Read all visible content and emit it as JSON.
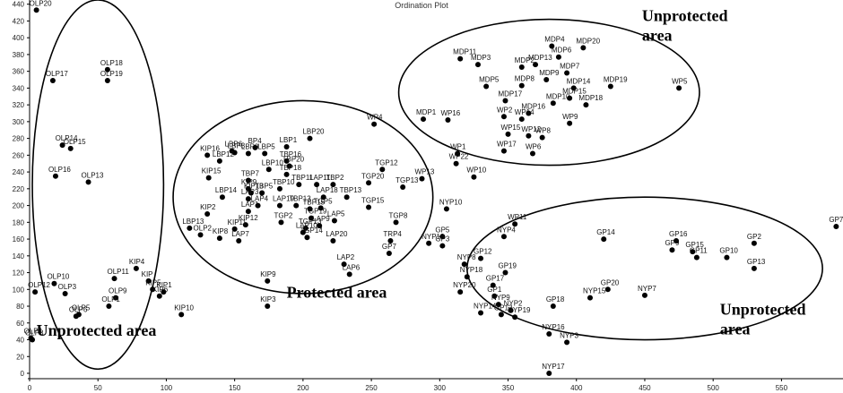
{
  "chart_data": {
    "type": "scatter",
    "title": "Ordination Plot",
    "xlabel": "",
    "ylabel": "",
    "xlim": [
      0,
      595
    ],
    "ylim": [
      0,
      445
    ],
    "x_ticks": [
      0,
      50,
      100,
      150,
      200,
      250,
      300,
      350,
      400,
      450,
      500,
      550
    ],
    "y_ticks": [
      0,
      20,
      40,
      60,
      80,
      100,
      120,
      140,
      160,
      180,
      200,
      220,
      240,
      260,
      280,
      300,
      320,
      340,
      360,
      380,
      400,
      420,
      440
    ],
    "grid": false,
    "legend": "none",
    "marker_color": "#000000",
    "ellipses": [
      {
        "label": "Unprotected area",
        "cx": 50,
        "cy": 225,
        "rx": 48,
        "ry": 220,
        "label_x": 5,
        "label_y": 45
      },
      {
        "label": "Protected area",
        "cx": 200,
        "cy": 210,
        "rx": 95,
        "ry": 115,
        "label_x": 188,
        "label_y": 90
      },
      {
        "label": "Unprotected area",
        "cx": 380,
        "cy": 335,
        "rx": 110,
        "ry": 87,
        "label_x": 448,
        "label_y": 420
      },
      {
        "label": "Unprotected area",
        "cx": 450,
        "cy": 125,
        "rx": 130,
        "ry": 85,
        "label_x": 505,
        "label_y": 70
      }
    ],
    "points": [
      {
        "label": "OLP20",
        "x": 5,
        "y": 433
      },
      {
        "label": "OLP17",
        "x": 17,
        "y": 349
      },
      {
        "label": "OLP18",
        "x": 57,
        "y": 362
      },
      {
        "label": "OLP19",
        "x": 57,
        "y": 349
      },
      {
        "label": "OLP14",
        "x": 24,
        "y": 272
      },
      {
        "label": "OLP15",
        "x": 30,
        "y": 268
      },
      {
        "label": "OLP16",
        "x": 19,
        "y": 235
      },
      {
        "label": "OLP13",
        "x": 43,
        "y": 228
      },
      {
        "label": "OLP12",
        "x": 4,
        "y": 97
      },
      {
        "label": "OLP10",
        "x": 18,
        "y": 107
      },
      {
        "label": "OLP11",
        "x": 62,
        "y": 113
      },
      {
        "label": "OLP3",
        "x": 26,
        "y": 95
      },
      {
        "label": "OLP9",
        "x": 63,
        "y": 90
      },
      {
        "label": "OLP1",
        "x": 58,
        "y": 80
      },
      {
        "label": "OLP5",
        "x": 36,
        "y": 70
      },
      {
        "label": "OLP6",
        "x": 34,
        "y": 68
      },
      {
        "label": "OLP4",
        "x": 1,
        "y": 42
      },
      {
        "label": "OLP8",
        "x": 2,
        "y": 40
      },
      {
        "label": "KIP4",
        "x": 78,
        "y": 125
      },
      {
        "label": "KIP",
        "x": 87,
        "y": 110
      },
      {
        "label": "KIP5",
        "x": 90,
        "y": 100
      },
      {
        "label": "KIP1",
        "x": 98,
        "y": 97
      },
      {
        "label": "KIP6",
        "x": 95,
        "y": 92
      },
      {
        "label": "KIP10",
        "x": 111,
        "y": 70
      },
      {
        "label": "KIP16",
        "x": 130,
        "y": 260
      },
      {
        "label": "LBP12",
        "x": 139,
        "y": 253
      },
      {
        "label": "KIP15",
        "x": 131,
        "y": 233
      },
      {
        "label": "LBP14",
        "x": 141,
        "y": 210
      },
      {
        "label": "KIP2",
        "x": 130,
        "y": 190
      },
      {
        "label": "LBP13",
        "x": 117,
        "y": 173
      },
      {
        "label": "OLP2",
        "x": 125,
        "y": 165
      },
      {
        "label": "KIP8",
        "x": 139,
        "y": 161
      },
      {
        "label": "LAP7",
        "x": 153,
        "y": 158
      },
      {
        "label": "KIP11",
        "x": 150,
        "y": 172
      },
      {
        "label": "KIP12",
        "x": 158,
        "y": 177
      },
      {
        "label": "LAP1",
        "x": 160,
        "y": 193
      },
      {
        "label": "LAP4",
        "x": 167,
        "y": 200
      },
      {
        "label": "TBP5",
        "x": 170,
        "y": 215
      },
      {
        "label": "LAP3",
        "x": 160,
        "y": 208
      },
      {
        "label": "LBP6",
        "x": 148,
        "y": 265
      },
      {
        "label": "LBP9",
        "x": 160,
        "y": 262
      },
      {
        "label": "LBP5",
        "x": 172,
        "y": 262
      },
      {
        "label": "BP4",
        "x": 165,
        "y": 269
      },
      {
        "label": "LBP1",
        "x": 188,
        "y": 270
      },
      {
        "label": "LBP20",
        "x": 205,
        "y": 280
      },
      {
        "label": "TBP16",
        "x": 188,
        "y": 253
      },
      {
        "label": "TBP20",
        "x": 190,
        "y": 247
      },
      {
        "label": "TBP18",
        "x": 188,
        "y": 237
      },
      {
        "label": "TBP7",
        "x": 160,
        "y": 230
      },
      {
        "label": "KIP9",
        "x": 160,
        "y": 220
      },
      {
        "label": "KIP13",
        "x": 162,
        "y": 215
      },
      {
        "label": "TBP10",
        "x": 183,
        "y": 220
      },
      {
        "label": "TBP11",
        "x": 197,
        "y": 225
      },
      {
        "label": "LAP11",
        "x": 210,
        "y": 225
      },
      {
        "label": "TBP2",
        "x": 222,
        "y": 225
      },
      {
        "label": "LAP18",
        "x": 215,
        "y": 210
      },
      {
        "label": "TBP13",
        "x": 232,
        "y": 210
      },
      {
        "label": "TGP5",
        "x": 213,
        "y": 197
      },
      {
        "label": "LAP19",
        "x": 183,
        "y": 200
      },
      {
        "label": "TGP19",
        "x": 206,
        "y": 185
      },
      {
        "label": "TGP2",
        "x": 184,
        "y": 180
      },
      {
        "label": "TGP13",
        "x": 202,
        "y": 173
      },
      {
        "label": "TGP14",
        "x": 203,
        "y": 162
      },
      {
        "label": "LAP5",
        "x": 223,
        "y": 182
      },
      {
        "label": "LAP20",
        "x": 222,
        "y": 158
      },
      {
        "label": "LAP2",
        "x": 230,
        "y": 130
      },
      {
        "label": "LAP6",
        "x": 234,
        "y": 118
      },
      {
        "label": "TGP20",
        "x": 248,
        "y": 227
      },
      {
        "label": "TGP12",
        "x": 258,
        "y": 243
      },
      {
        "label": "TGP15",
        "x": 248,
        "y": 198
      },
      {
        "label": "TGP13",
        "x": 273,
        "y": 222
      },
      {
        "label": "TGP8",
        "x": 268,
        "y": 180
      },
      {
        "label": "TRP4",
        "x": 264,
        "y": 158
      },
      {
        "label": "GP5",
        "x": 302,
        "y": 163
      },
      {
        "label": "GP3",
        "x": 302,
        "y": 152
      },
      {
        "label": "NYP13",
        "x": 292,
        "y": 155
      },
      {
        "label": "GP7",
        "x": 263,
        "y": 143
      },
      {
        "label": "KIP9",
        "x": 174,
        "y": 110
      },
      {
        "label": "KIP3",
        "x": 174,
        "y": 80
      },
      {
        "label": "WP4",
        "x": 252,
        "y": 297
      },
      {
        "label": "MDP1",
        "x": 288,
        "y": 303
      },
      {
        "label": "WP16",
        "x": 306,
        "y": 302
      },
      {
        "label": "WP13",
        "x": 287,
        "y": 232
      },
      {
        "label": "WP1",
        "x": 313,
        "y": 262
      },
      {
        "label": "WP22",
        "x": 312,
        "y": 250
      },
      {
        "label": "WP10",
        "x": 325,
        "y": 234
      },
      {
        "label": "NYP10",
        "x": 305,
        "y": 196
      },
      {
        "label": "MDP11",
        "x": 315,
        "y": 375
      },
      {
        "label": "MDP3",
        "x": 328,
        "y": 368
      },
      {
        "label": "MDP5",
        "x": 334,
        "y": 342
      },
      {
        "label": "MDP4",
        "x": 382,
        "y": 390
      },
      {
        "label": "MDP20",
        "x": 405,
        "y": 388
      },
      {
        "label": "MDP6",
        "x": 387,
        "y": 377
      },
      {
        "label": "MDP13",
        "x": 370,
        "y": 368
      },
      {
        "label": "MDP2",
        "x": 360,
        "y": 365
      },
      {
        "label": "MDP7",
        "x": 393,
        "y": 358
      },
      {
        "label": "MDP9",
        "x": 378,
        "y": 350
      },
      {
        "label": "MDP8",
        "x": 360,
        "y": 343
      },
      {
        "label": "MDP14",
        "x": 398,
        "y": 340
      },
      {
        "label": "MDP19",
        "x": 425,
        "y": 342
      },
      {
        "label": "MDP15",
        "x": 395,
        "y": 328
      },
      {
        "label": "MDP18",
        "x": 407,
        "y": 320
      },
      {
        "label": "MDP17",
        "x": 348,
        "y": 325
      },
      {
        "label": "MDP16",
        "x": 365,
        "y": 310
      },
      {
        "label": "MDP10",
        "x": 383,
        "y": 322
      },
      {
        "label": "WP2",
        "x": 347,
        "y": 306
      },
      {
        "label": "WP14",
        "x": 360,
        "y": 303
      },
      {
        "label": "WP9",
        "x": 395,
        "y": 298
      },
      {
        "label": "WP15",
        "x": 350,
        "y": 285
      },
      {
        "label": "WP12",
        "x": 365,
        "y": 283
      },
      {
        "label": "WP8",
        "x": 375,
        "y": 281
      },
      {
        "label": "WP17",
        "x": 347,
        "y": 265
      },
      {
        "label": "WP6",
        "x": 368,
        "y": 262
      },
      {
        "label": "WP5",
        "x": 475,
        "y": 340
      },
      {
        "label": "WP11",
        "x": 355,
        "y": 178
      },
      {
        "label": "NYP4",
        "x": 347,
        "y": 163
      },
      {
        "label": "GP14",
        "x": 420,
        "y": 160
      },
      {
        "label": "GP16",
        "x": 473,
        "y": 158
      },
      {
        "label": "GP9",
        "x": 470,
        "y": 147
      },
      {
        "label": "GP15",
        "x": 485,
        "y": 145
      },
      {
        "label": "GP11",
        "x": 488,
        "y": 138
      },
      {
        "label": "GP10",
        "x": 510,
        "y": 138
      },
      {
        "label": "GP2",
        "x": 530,
        "y": 155
      },
      {
        "label": "GP13",
        "x": 530,
        "y": 125
      },
      {
        "label": "GP7",
        "x": 590,
        "y": 175
      },
      {
        "label": "GP12",
        "x": 330,
        "y": 137
      },
      {
        "label": "NYP8",
        "x": 318,
        "y": 130
      },
      {
        "label": "NYP18",
        "x": 320,
        "y": 115
      },
      {
        "label": "GP19",
        "x": 348,
        "y": 120
      },
      {
        "label": "GP17",
        "x": 339,
        "y": 105
      },
      {
        "label": "NYP20",
        "x": 315,
        "y": 97
      },
      {
        "label": "GP1",
        "x": 340,
        "y": 92
      },
      {
        "label": "NYP9",
        "x": 343,
        "y": 82
      },
      {
        "label": "NYP2",
        "x": 352,
        "y": 75
      },
      {
        "label": "GP20",
        "x": 423,
        "y": 100
      },
      {
        "label": "NYP7",
        "x": 450,
        "y": 93
      },
      {
        "label": "NYP15",
        "x": 410,
        "y": 90
      },
      {
        "label": "GP18",
        "x": 383,
        "y": 80
      },
      {
        "label": "NYP14",
        "x": 330,
        "y": 72
      },
      {
        "label": "GP13",
        "x": 345,
        "y": 70
      },
      {
        "label": "NYP19",
        "x": 355,
        "y": 67
      },
      {
        "label": "NYP16",
        "x": 380,
        "y": 47
      },
      {
        "label": "NYP3",
        "x": 393,
        "y": 37
      },
      {
        "label": "NYP17",
        "x": 380,
        "y": 0
      }
    ],
    "dense_labels": [
      {
        "label": "LBP3",
        "x": 150,
        "y": 263
      },
      {
        "label": "LBP10",
        "x": 175,
        "y": 243
      },
      {
        "label": "TBP13",
        "x": 195,
        "y": 200
      },
      {
        "label": "TBP15",
        "x": 205,
        "y": 196
      },
      {
        "label": "LAP10",
        "x": 200,
        "y": 168
      },
      {
        "label": "LAP9",
        "x": 212,
        "y": 176
      }
    ]
  }
}
